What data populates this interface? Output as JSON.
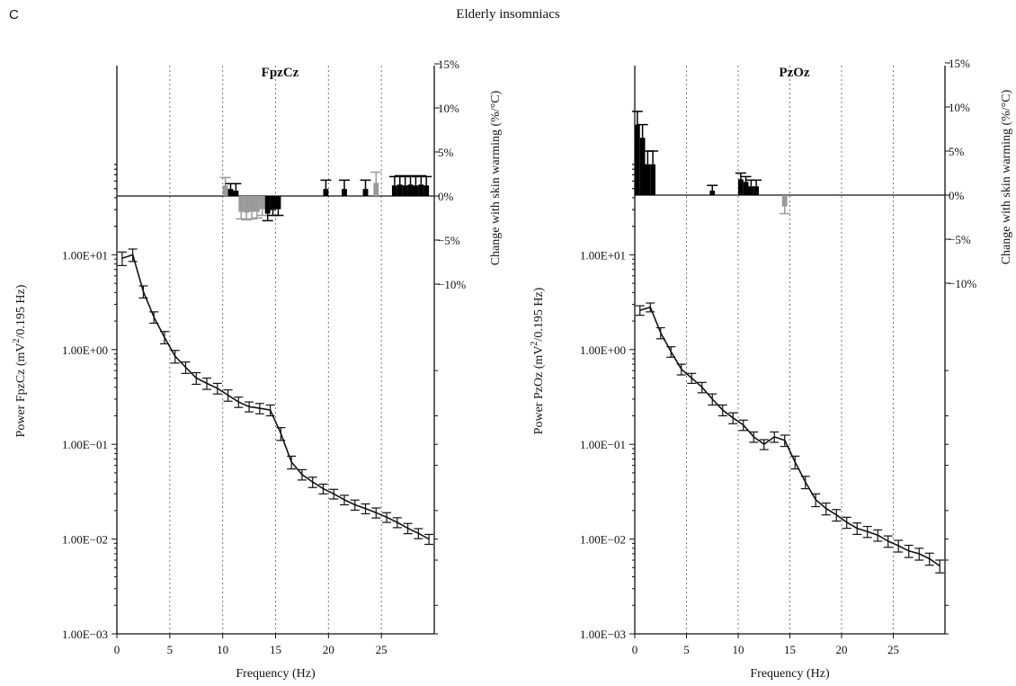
{
  "panel_letter": "C",
  "figure_title": "Elderly insomniacs",
  "colors": {
    "line": "#111111",
    "bar_significant": "#000000",
    "bar_trend": "#9a9a9a",
    "grid": "#777777"
  },
  "chart_data": [
    {
      "type": "line",
      "title": "FpzCz",
      "xlabel": "Frequency (Hz)",
      "ylabel": "Power FpzCz (mV²/0.195 Hz)",
      "ylabel_parts": {
        "pre": "Power FpzCz (mV",
        "sup": "2",
        "post": "/0.195 Hz)"
      },
      "right_ylabel": "Change with skin warming (%/°C)",
      "xlim": [
        0,
        30
      ],
      "xticks": [
        0,
        5,
        10,
        15,
        20,
        25
      ],
      "xtick_labels": [
        "0",
        "5",
        "10",
        "15",
        "20",
        "25"
      ],
      "dotted_grid_x": [
        5,
        10,
        15,
        20,
        25
      ],
      "log_y": true,
      "ylim": [
        0.001,
        100
      ],
      "yticks": [
        10,
        1,
        0.1,
        0.01,
        0.001
      ],
      "ytick_labels": [
        "1.00E+01",
        "1.00E+00",
        "1.00E−01",
        "1.00E−02",
        "1.00E−03"
      ],
      "right_ylim": [
        -10,
        15
      ],
      "right_yticks": [
        15,
        10,
        5,
        0,
        -5,
        -10
      ],
      "right_ytick_labels": [
        "15%",
        "10%",
        "5%",
        "0%",
        "−5%",
        "−10%"
      ],
      "series": [
        {
          "x": [
            0.5,
            1.5,
            2.5,
            3.5,
            4.5,
            5.5,
            6.5,
            7.5,
            8.5,
            9.5,
            10.5,
            11.5,
            12.5,
            13.5,
            14.5,
            15.5,
            16.5,
            17.5,
            18.5,
            19.5,
            20.5,
            21.5,
            22.5,
            23.5,
            24.5,
            25.5,
            26.5,
            27.5,
            28.5,
            29.5
          ],
          "y": [
            9.2,
            10.0,
            4.1,
            2.2,
            1.35,
            0.85,
            0.65,
            0.5,
            0.44,
            0.39,
            0.33,
            0.28,
            0.25,
            0.24,
            0.23,
            0.13,
            0.065,
            0.048,
            0.04,
            0.034,
            0.03,
            0.026,
            0.023,
            0.021,
            0.019,
            0.017,
            0.015,
            0.013,
            0.0115,
            0.01
          ],
          "err": [
            1.5,
            1.5,
            0.6,
            0.3,
            0.2,
            0.13,
            0.09,
            0.07,
            0.06,
            0.05,
            0.045,
            0.035,
            0.03,
            0.03,
            0.03,
            0.02,
            0.01,
            0.006,
            0.005,
            0.004,
            0.0035,
            0.003,
            0.0028,
            0.0025,
            0.0023,
            0.002,
            0.0018,
            0.0016,
            0.0014,
            0.0012
          ]
        }
      ],
      "bars": {
        "x": [
          10.25,
          10.75,
          11.25,
          11.75,
          12.25,
          12.75,
          13.25,
          13.75,
          14.25,
          14.75,
          15.25,
          19.75,
          21.5,
          23.5,
          24.5,
          26.25,
          26.75,
          27.25,
          27.75,
          28.25,
          28.75,
          29.25
        ],
        "values": [
          1.2,
          0.8,
          0.6,
          -1.8,
          -1.9,
          -1.8,
          -1.8,
          -1.5,
          -2.0,
          -1.6,
          -1.5,
          0.8,
          0.8,
          0.8,
          1.5,
          1.2,
          1.3,
          1.2,
          1.3,
          1.2,
          1.3,
          1.2
        ],
        "err": [
          0.9,
          0.6,
          0.8,
          0.8,
          0.8,
          0.8,
          0.7,
          0.7,
          0.8,
          0.6,
          0.7,
          1.0,
          1.0,
          1.0,
          1.2,
          1.0,
          1.0,
          1.0,
          1.0,
          1.0,
          1.0,
          1.0
        ],
        "kind": [
          "g",
          "k",
          "k",
          "g",
          "g",
          "g",
          "g",
          "g",
          "k",
          "k",
          "k",
          "k",
          "k",
          "k",
          "g",
          "k",
          "k",
          "k",
          "k",
          "k",
          "k",
          "k"
        ]
      }
    },
    {
      "type": "line",
      "title": "PzOz",
      "xlabel": "Frequency (Hz)",
      "ylabel": "Power PzOz (mV²/0.195 Hz)",
      "ylabel_parts": {
        "pre": "Power PzOz (mV",
        "sup": "2",
        "post": "/0.195 Hz)"
      },
      "right_ylabel": "Change with skin warming (%/°C)",
      "xlim": [
        0,
        30
      ],
      "xticks": [
        0,
        5,
        10,
        15,
        20,
        25
      ],
      "xtick_labels": [
        "0",
        "5",
        "10",
        "15",
        "20",
        "25"
      ],
      "dotted_grid_x": [
        5,
        10,
        15,
        20,
        25
      ],
      "log_y": true,
      "ylim": [
        0.001,
        100
      ],
      "yticks": [
        10,
        1,
        0.1,
        0.01,
        0.001
      ],
      "ytick_labels": [
        "1.00E+01",
        "1.00E+00",
        "1.00E−01",
        "1.00E−02",
        "1.00E−03"
      ],
      "right_ylim": [
        -10,
        15
      ],
      "right_yticks": [
        15,
        10,
        5,
        0,
        -5,
        -10
      ],
      "right_ytick_labels": [
        "15%",
        "10%",
        "5%",
        "0%",
        "−5%",
        "−10%"
      ],
      "series": [
        {
          "x": [
            0.5,
            1.5,
            2.5,
            3.5,
            4.5,
            5.5,
            6.5,
            7.5,
            8.5,
            9.5,
            10.5,
            11.5,
            12.5,
            13.5,
            14.5,
            15.5,
            16.5,
            17.5,
            18.5,
            19.5,
            20.5,
            21.5,
            22.5,
            23.5,
            24.5,
            25.5,
            26.5,
            27.5,
            28.5,
            29.5
          ],
          "y": [
            2.6,
            2.8,
            1.5,
            0.95,
            0.62,
            0.5,
            0.4,
            0.3,
            0.23,
            0.19,
            0.16,
            0.12,
            0.1,
            0.12,
            0.11,
            0.065,
            0.04,
            0.026,
            0.021,
            0.018,
            0.015,
            0.013,
            0.012,
            0.011,
            0.0095,
            0.0085,
            0.0075,
            0.007,
            0.0062,
            0.0052
          ],
          "err": [
            0.3,
            0.3,
            0.2,
            0.12,
            0.08,
            0.06,
            0.05,
            0.04,
            0.03,
            0.025,
            0.02,
            0.015,
            0.012,
            0.015,
            0.015,
            0.01,
            0.006,
            0.004,
            0.003,
            0.0025,
            0.002,
            0.0018,
            0.0016,
            0.0015,
            0.0013,
            0.0012,
            0.0011,
            0.001,
            0.0009,
            0.0008
          ]
        }
      ],
      "bars": {
        "x": [
          0.25,
          0.75,
          1.25,
          1.75,
          7.5,
          10.25,
          10.75,
          11.25,
          11.75,
          14.5
        ],
        "values": [
          8.0,
          6.5,
          3.5,
          3.5,
          0.5,
          1.8,
          1.5,
          1.0,
          1.0,
          -1.3
        ],
        "err": [
          1.5,
          1.5,
          1.5,
          1.5,
          0.6,
          0.7,
          0.6,
          0.7,
          0.7,
          0.8
        ],
        "kind": [
          "k",
          "k",
          "k",
          "k",
          "k",
          "k",
          "k",
          "k",
          "k",
          "g"
        ]
      }
    }
  ]
}
